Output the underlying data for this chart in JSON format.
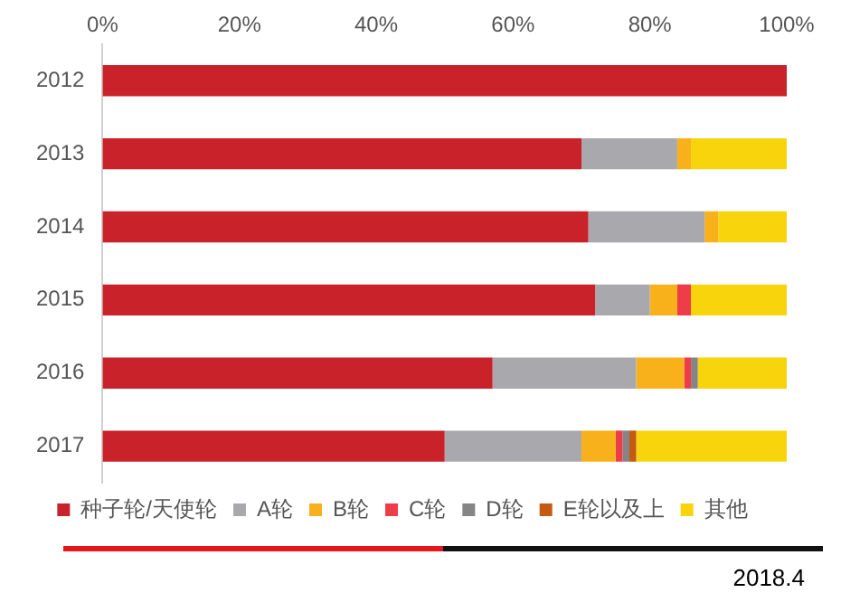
{
  "chart_data": {
    "type": "bar",
    "orientation": "horizontal",
    "stacked": true,
    "categories": [
      "2012",
      "2013",
      "2014",
      "2015",
      "2016",
      "2017"
    ],
    "series": [
      {
        "name": "种子轮/天使轮",
        "color": "#c9222a",
        "values": [
          100,
          70,
          71,
          72,
          57,
          50
        ]
      },
      {
        "name": "A轮",
        "color": "#a9a9ad",
        "values": [
          0,
          14,
          17,
          8,
          21,
          20
        ]
      },
      {
        "name": "B轮",
        "color": "#f9b11b",
        "values": [
          0,
          2,
          2,
          4,
          7,
          5
        ]
      },
      {
        "name": "C轮",
        "color": "#ee3d48",
        "values": [
          0,
          0,
          0,
          2,
          1,
          1
        ]
      },
      {
        "name": "D轮",
        "color": "#858585",
        "values": [
          0,
          0,
          0,
          0,
          1,
          1
        ]
      },
      {
        "name": "E轮以及上",
        "color": "#c55a11",
        "values": [
          0,
          0,
          0,
          0,
          0,
          1
        ]
      },
      {
        "name": "其他",
        "color": "#f7d40c",
        "values": [
          0,
          14,
          10,
          14,
          13,
          22
        ]
      }
    ],
    "xlim": [
      0,
      100
    ],
    "xticks": [
      {
        "value": 0,
        "label": "0%"
      },
      {
        "value": 20,
        "label": "20%"
      },
      {
        "value": 40,
        "label": "40%"
      },
      {
        "value": 60,
        "label": "60%"
      },
      {
        "value": 80,
        "label": "80%"
      },
      {
        "value": 100,
        "label": "100%"
      }
    ],
    "grid": false,
    "legend": "bottom",
    "annotations": [
      "2018.4"
    ]
  }
}
